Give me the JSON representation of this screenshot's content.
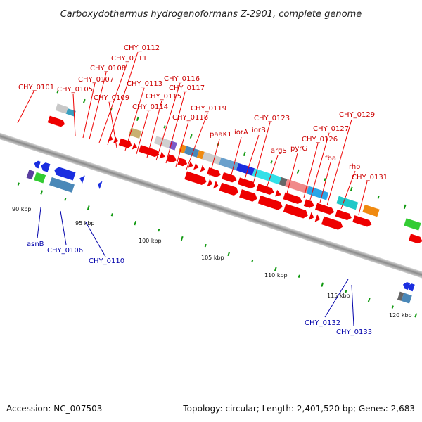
{
  "title": "Carboxydothermus hydrogenoformans Z-2901, complete genome",
  "accession": "Accession: NC_007503",
  "summary": "Topology: circular; Length: 2,401,520 bp; Genes: 2,683",
  "colors": {
    "forward_label": "#cc0000",
    "reverse_label": "#0000aa",
    "cds": "#ee0000",
    "backbone": "#777777",
    "tick": "#119911"
  },
  "scale_labels": [
    "90 kbp",
    "95 kbp",
    "100 kbp",
    "105 kbp",
    "110 kbp",
    "115 kbp",
    "120 kbp"
  ],
  "forward_genes": [
    "CHY_0101",
    "CHY_0105",
    "CHY_0107",
    "CHY_0108",
    "CHY_0111",
    "CHY_0112",
    "CHY_0109",
    "CHY_0113",
    "CHY_0114",
    "CHY_0115",
    "CHY_0116",
    "CHY_0117",
    "CHY_0118",
    "CHY_0119",
    "paaK1",
    "iorA",
    "iorB",
    "CHY_0123",
    "argS",
    "pyrG",
    "CHY_0126",
    "CHY_0127",
    "fba",
    "CHY_0129",
    "rho",
    "CHY_0131"
  ],
  "reverse_genes": [
    "asnB",
    "CHY_0106",
    "CHY_0110",
    "CHY_0132",
    "CHY_0133"
  ]
}
